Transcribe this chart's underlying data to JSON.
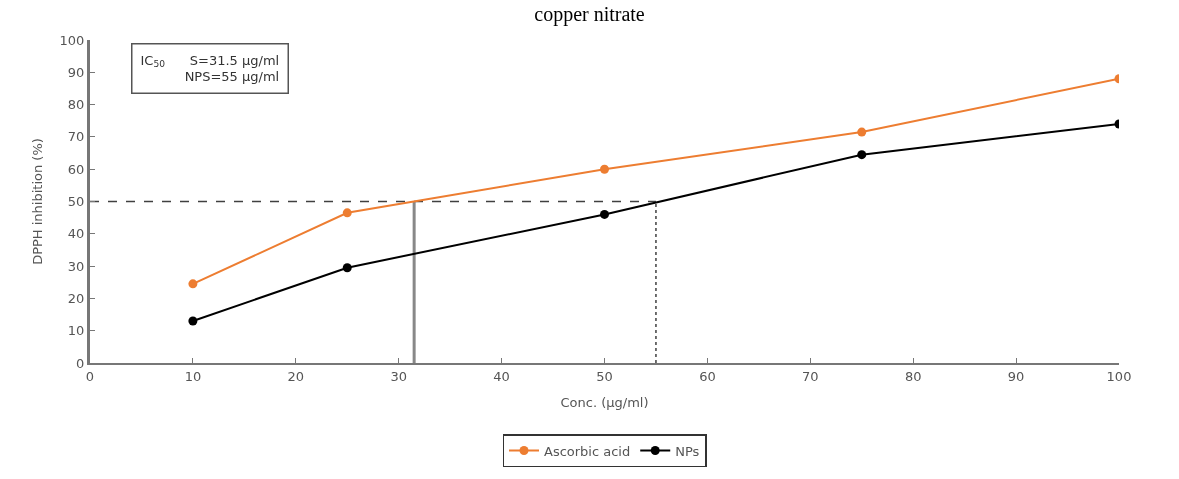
{
  "chart_data": {
    "type": "line",
    "title": "copper nitrate",
    "xlabel": "Conc. (µg/ml)",
    "ylabel": "DPPH inhibition (%)",
    "x": [
      10,
      25,
      50,
      75,
      100
    ],
    "series": [
      {
        "name": "Ascorbic acid",
        "color": "#ed7d31",
        "values": [
          24.5,
          46.5,
          60,
          71.5,
          88
        ]
      },
      {
        "name": "NPs",
        "color": "#000000",
        "values": [
          13,
          29.5,
          46,
          64.5,
          74
        ]
      }
    ],
    "xlim": [
      0,
      100
    ],
    "xticks": [
      0,
      10,
      20,
      30,
      40,
      50,
      60,
      70,
      80,
      90,
      100
    ],
    "ylim": [
      0,
      100
    ],
    "yticks": [
      0,
      10,
      20,
      30,
      40,
      50,
      60,
      70,
      80,
      90,
      100
    ],
    "ref_lines": [
      {
        "axis": "y",
        "value": 50,
        "line_style": "dashed",
        "color": "#404040"
      },
      {
        "axis": "x",
        "value": 31.5,
        "line_style": "solid",
        "color": "#888888"
      },
      {
        "axis": "x",
        "value": 55,
        "line_style": "dotted",
        "color": "#404040"
      }
    ],
    "annotations": [
      "IC$_{50}$      S=31.5 µg/ml\nNPS=55 µg/ml"
    ],
    "grid": false,
    "legend": "bottom",
    "marker": "circle",
    "line_style": "solid"
  }
}
